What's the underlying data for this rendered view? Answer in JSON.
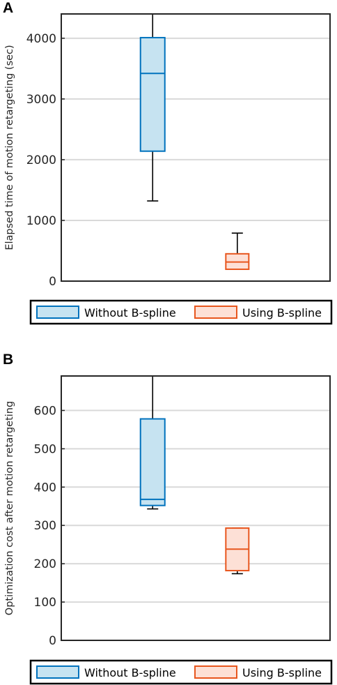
{
  "chart_data": [
    {
      "type": "box",
      "panel_label": "A",
      "ylabel": "Elapsed time of motion retargeting (sec)",
      "ylim": [
        0,
        4400
      ],
      "yticks": [
        0,
        1000,
        2000,
        3000,
        4000
      ],
      "grid": true,
      "legend_placement": "bottom",
      "series": [
        {
          "name": "Without B-spline",
          "color": "#0072BD",
          "fill": "#c6e3f1",
          "whisker_low": 1320,
          "q1": 2140,
          "median": 3420,
          "q3": 4010,
          "whisker_high": 4400
        },
        {
          "name": "Using B-spline",
          "color": "#E8561E",
          "fill": "#fde0d6",
          "whisker_low": 195,
          "q1": 195,
          "median": 315,
          "q3": 450,
          "whisker_high": 790
        }
      ]
    },
    {
      "type": "box",
      "panel_label": "B",
      "ylabel": "Optimization cost after motion retargeting",
      "ylim": [
        0,
        690
      ],
      "yticks": [
        0,
        100,
        200,
        300,
        400,
        500,
        600
      ],
      "grid": true,
      "legend_placement": "bottom",
      "series": [
        {
          "name": "Without B-spline",
          "color": "#0072BD",
          "fill": "#c6e3f1",
          "whisker_low": 343,
          "q1": 352,
          "median": 368,
          "q3": 578,
          "whisker_high": 690
        },
        {
          "name": "Using B-spline",
          "color": "#E8561E",
          "fill": "#fde0d6",
          "whisker_low": 174,
          "q1": 182,
          "median": 238,
          "q3": 293,
          "whisker_high": 293
        }
      ]
    }
  ]
}
